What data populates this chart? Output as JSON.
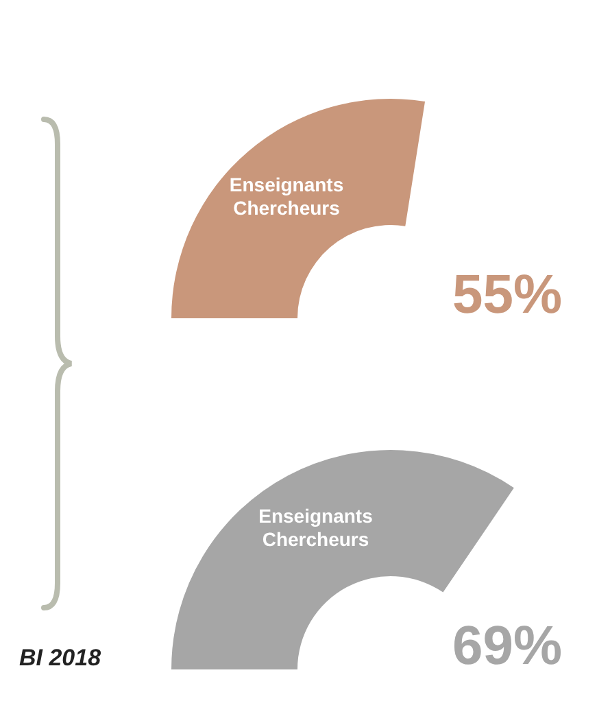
{
  "chart_data": [
    {
      "type": "other",
      "categories": [
        "Enseignants\nChercheurs"
      ],
      "values": [
        55
      ],
      "value_labels": [
        "55%"
      ],
      "colors": [
        "#c9977b"
      ]
    },
    {
      "type": "other",
      "categories": [
        "Enseignants\nChercheurs"
      ],
      "values": [
        69
      ],
      "value_labels": [
        "69%"
      ],
      "colors": [
        "#a6a6a6"
      ],
      "annotations": [
        "BI 2018"
      ]
    }
  ]
}
